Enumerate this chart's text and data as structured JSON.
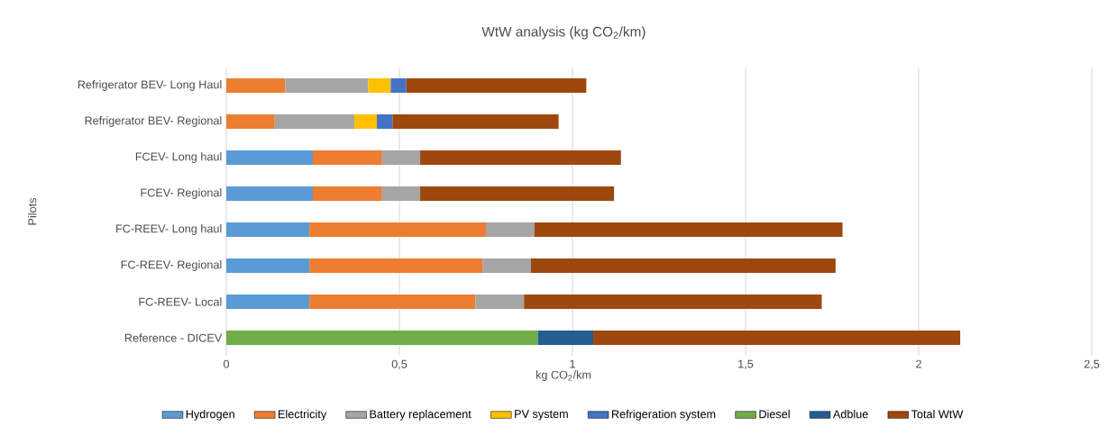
{
  "chart_data": {
    "type": "bar",
    "orientation": "horizontal",
    "stacked": true,
    "title": "WtW analysis (kg CO$_{2}$/km)",
    "xlabel": "kg CO$_{2}$/km",
    "ylabel": "Pilots",
    "categories": [
      "Refrigerator BEV- Long Haul",
      "Refrigerator BEV- Regional",
      "FCEV- Long haul",
      "FCEV- Regional",
      "FC-REEV- Long haul",
      "FC-REEV- Regional",
      "FC-REEV- Local",
      "Reference - DICEV"
    ],
    "series": [
      {
        "name": "Hydrogen",
        "color": "#5b9bd5",
        "values": [
          null,
          null,
          0.25,
          0.25,
          0.24,
          0.24,
          0.24,
          null
        ]
      },
      {
        "name": "Electricity",
        "color": "#ed7d31",
        "values": [
          0.17,
          0.14,
          0.2,
          0.2,
          0.51,
          0.5,
          0.48,
          null
        ]
      },
      {
        "name": "Battery replacement",
        "color": "#a5a5a5",
        "values": [
          0.24,
          0.23,
          0.11,
          0.11,
          0.14,
          0.14,
          0.14,
          null
        ]
      },
      {
        "name": "PV system",
        "color": "#ffc000",
        "values": [
          0.065,
          0.065,
          null,
          null,
          null,
          null,
          null,
          null
        ]
      },
      {
        "name": "Refrigeration system",
        "color": "#4472c4",
        "values": [
          0.045,
          0.045,
          null,
          null,
          null,
          null,
          null,
          null
        ]
      },
      {
        "name": "Diesel",
        "color": "#70ad47",
        "values": [
          null,
          null,
          null,
          null,
          null,
          null,
          null,
          0.9
        ]
      },
      {
        "name": "Adblue",
        "color": "#255e91",
        "values": [
          null,
          null,
          null,
          null,
          null,
          null,
          null,
          0.16
        ]
      },
      {
        "name": "Total WtW",
        "color": "#9e480e",
        "values": [
          0.52,
          0.48,
          0.58,
          0.56,
          0.89,
          0.88,
          0.86,
          1.06
        ]
      }
    ],
    "xlim": [
      0,
      2.5
    ],
    "xticks": [
      0,
      {
        "value": 0.5,
        "label": "0,5"
      },
      1,
      {
        "value": 1.5,
        "label": "1,5"
      },
      2,
      {
        "value": 2.5,
        "label": "2,5"
      }
    ],
    "grid": "x",
    "legend": "bottom"
  }
}
